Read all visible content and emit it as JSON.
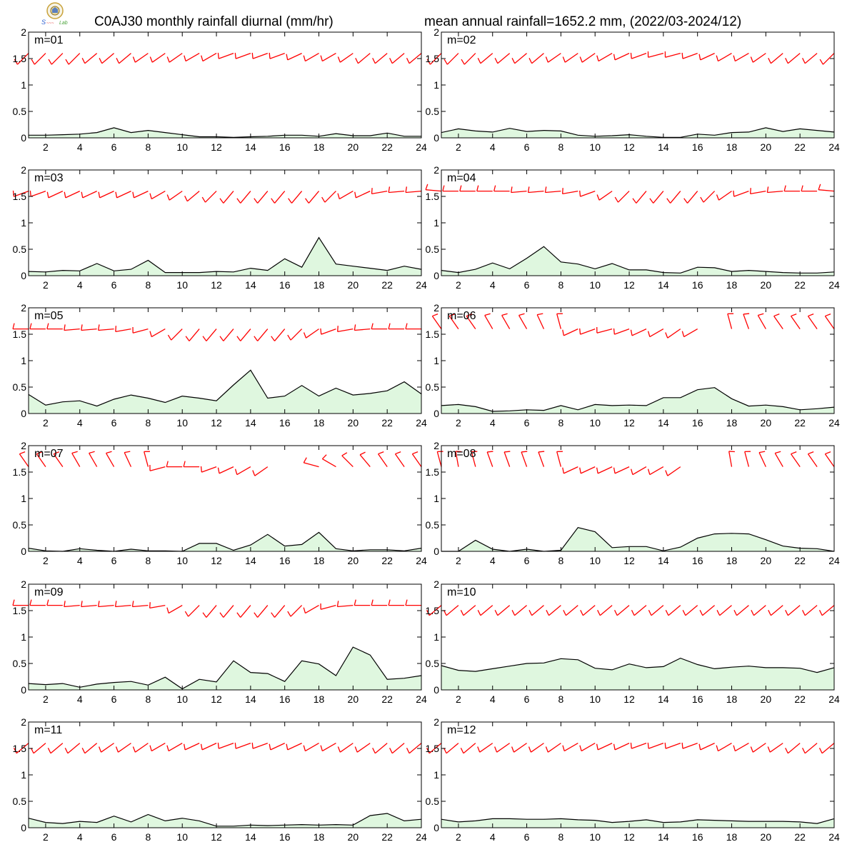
{
  "header": {
    "title_left": "C0AJ30 monthly rainfall diurnal (mm/hr)",
    "title_right": "mean annual rainfall=1652.2 mm, (2022/03-2024/12)"
  },
  "style": {
    "rain_line": "#000000",
    "rain_fill": "#dff7df",
    "wind_color": "#ff0000",
    "axis_color": "#000000"
  },
  "chart_data": [
    {
      "type": "area",
      "label": "m=01",
      "xlim": [
        1,
        24
      ],
      "ylim": [
        0,
        2
      ],
      "xticks": [
        2,
        4,
        6,
        8,
        10,
        12,
        14,
        16,
        18,
        20,
        22,
        24
      ],
      "yticks": [
        0,
        0.5,
        1,
        1.5,
        2
      ],
      "x": [
        1,
        2,
        3,
        4,
        5,
        6,
        7,
        8,
        9,
        10,
        11,
        12,
        13,
        14,
        15,
        16,
        17,
        18,
        19,
        20,
        21,
        22,
        23,
        24
      ],
      "rain": [
        0.05,
        0.05,
        0.06,
        0.07,
        0.1,
        0.19,
        0.1,
        0.14,
        0.1,
        0.06,
        0.02,
        0.02,
        0.01,
        0.02,
        0.03,
        0.05,
        0.05,
        0.03,
        0.08,
        0.04,
        0.04,
        0.09,
        0.03,
        0.03
      ],
      "wind_dir": [
        225,
        225,
        225,
        225,
        230,
        230,
        230,
        235,
        235,
        235,
        240,
        240,
        250,
        250,
        250,
        250,
        245,
        240,
        240,
        235,
        230,
        230,
        230,
        230
      ]
    },
    {
      "type": "area",
      "label": "m=02",
      "xlim": [
        1,
        24
      ],
      "ylim": [
        0,
        2
      ],
      "xticks": [
        2,
        4,
        6,
        8,
        10,
        12,
        14,
        16,
        18,
        20,
        22,
        24
      ],
      "yticks": [
        0,
        0.5,
        1,
        1.5,
        2
      ],
      "x": [
        1,
        2,
        3,
        4,
        5,
        6,
        7,
        8,
        9,
        10,
        11,
        12,
        13,
        14,
        15,
        16,
        17,
        18,
        19,
        20,
        21,
        22,
        23,
        24
      ],
      "rain": [
        0.1,
        0.17,
        0.13,
        0.11,
        0.18,
        0.12,
        0.14,
        0.13,
        0.05,
        0.03,
        0.04,
        0.06,
        0.03,
        0.01,
        0.01,
        0.07,
        0.05,
        0.1,
        0.11,
        0.19,
        0.12,
        0.17,
        0.14,
        0.11
      ],
      "wind_dir": [
        225,
        225,
        225,
        230,
        230,
        230,
        230,
        235,
        235,
        235,
        240,
        245,
        250,
        255,
        255,
        250,
        245,
        240,
        240,
        235,
        230,
        230,
        230,
        225
      ]
    },
    {
      "type": "area",
      "label": "m=03",
      "xlim": [
        1,
        24
      ],
      "ylim": [
        0,
        2
      ],
      "xticks": [
        2,
        4,
        6,
        8,
        10,
        12,
        14,
        16,
        18,
        20,
        22,
        24
      ],
      "yticks": [
        0,
        0.5,
        1,
        1.5,
        2
      ],
      "x": [
        1,
        2,
        3,
        4,
        5,
        6,
        7,
        8,
        9,
        10,
        11,
        12,
        13,
        14,
        15,
        16,
        17,
        18,
        19,
        20,
        21,
        22,
        23,
        24
      ],
      "rain": [
        0.08,
        0.07,
        0.1,
        0.09,
        0.23,
        0.09,
        0.12,
        0.29,
        0.06,
        0.06,
        0.06,
        0.08,
        0.07,
        0.14,
        0.1,
        0.32,
        0.16,
        0.72,
        0.22,
        0.18,
        0.14,
        0.1,
        0.18,
        0.12
      ],
      "wind_dir": [
        250,
        250,
        245,
        245,
        245,
        245,
        245,
        245,
        240,
        235,
        230,
        225,
        220,
        220,
        220,
        220,
        220,
        220,
        225,
        240,
        245,
        260,
        265,
        265
      ]
    },
    {
      "type": "area",
      "label": "m=04",
      "xlim": [
        1,
        24
      ],
      "ylim": [
        0,
        2
      ],
      "xticks": [
        2,
        4,
        6,
        8,
        10,
        12,
        14,
        16,
        18,
        20,
        22,
        24
      ],
      "yticks": [
        0,
        0.5,
        1,
        1.5,
        2
      ],
      "x": [
        1,
        2,
        3,
        4,
        5,
        6,
        7,
        8,
        9,
        10,
        11,
        12,
        13,
        14,
        15,
        16,
        17,
        18,
        19,
        20,
        21,
        22,
        23,
        24
      ],
      "rain": [
        0.1,
        0.06,
        0.12,
        0.24,
        0.13,
        0.33,
        0.55,
        0.26,
        0.22,
        0.13,
        0.23,
        0.11,
        0.11,
        0.06,
        0.05,
        0.16,
        0.15,
        0.08,
        0.1,
        0.08,
        0.06,
        0.05,
        0.05,
        0.07
      ],
      "wind_dir": [
        275,
        270,
        270,
        270,
        270,
        265,
        265,
        265,
        260,
        250,
        235,
        225,
        220,
        220,
        220,
        220,
        225,
        235,
        250,
        260,
        265,
        270,
        270,
        275
      ]
    },
    {
      "type": "area",
      "label": "m=05",
      "xlim": [
        1,
        24
      ],
      "ylim": [
        0,
        2
      ],
      "xticks": [
        2,
        4,
        6,
        8,
        10,
        12,
        14,
        16,
        18,
        20,
        22,
        24
      ],
      "yticks": [
        0,
        0.5,
        1,
        1.5,
        2
      ],
      "x": [
        1,
        2,
        3,
        4,
        5,
        6,
        7,
        8,
        9,
        10,
        11,
        12,
        13,
        14,
        15,
        16,
        17,
        18,
        19,
        20,
        21,
        22,
        23,
        24
      ],
      "rain": [
        0.36,
        0.16,
        0.22,
        0.24,
        0.14,
        0.27,
        0.35,
        0.29,
        0.21,
        0.33,
        0.29,
        0.24,
        0.54,
        0.82,
        0.29,
        0.33,
        0.53,
        0.33,
        0.48,
        0.35,
        0.38,
        0.43,
        0.6,
        0.37
      ],
      "wind_dir": [
        270,
        270,
        270,
        265,
        265,
        265,
        260,
        255,
        240,
        225,
        220,
        220,
        220,
        220,
        220,
        220,
        225,
        235,
        250,
        260,
        265,
        270,
        270,
        270
      ]
    },
    {
      "type": "area",
      "label": "m=06",
      "xlim": [
        1,
        24
      ],
      "ylim": [
        0,
        2
      ],
      "xticks": [
        2,
        4,
        6,
        8,
        10,
        12,
        14,
        16,
        18,
        20,
        22,
        24
      ],
      "yticks": [
        0,
        0.5,
        1,
        1.5,
        2
      ],
      "x": [
        1,
        2,
        3,
        4,
        5,
        6,
        7,
        8,
        9,
        10,
        11,
        12,
        13,
        14,
        15,
        16,
        17,
        18,
        19,
        20,
        21,
        22,
        23,
        24
      ],
      "rain": [
        0.15,
        0.17,
        0.13,
        0.04,
        0.05,
        0.07,
        0.06,
        0.15,
        0.07,
        0.17,
        0.15,
        0.16,
        0.15,
        0.3,
        0.3,
        0.45,
        0.49,
        0.28,
        0.14,
        0.16,
        0.13,
        0.07,
        0.09,
        0.12
      ],
      "wind_dir": [
        325,
        325,
        325,
        330,
        330,
        330,
        335,
        345,
        245,
        250,
        255,
        250,
        245,
        240,
        235,
        240,
        null,
        345,
        340,
        330,
        325,
        325,
        325,
        325
      ]
    },
    {
      "type": "area",
      "label": "m=07",
      "xlim": [
        1,
        24
      ],
      "ylim": [
        0,
        2
      ],
      "xticks": [
        2,
        4,
        6,
        8,
        10,
        12,
        14,
        16,
        18,
        20,
        22,
        24
      ],
      "yticks": [
        0,
        0.5,
        1,
        1.5,
        2
      ],
      "x": [
        1,
        2,
        3,
        4,
        5,
        6,
        7,
        8,
        9,
        10,
        11,
        12,
        13,
        14,
        15,
        16,
        17,
        18,
        19,
        20,
        21,
        22,
        23,
        24
      ],
      "rain": [
        0.06,
        0.01,
        0.0,
        0.05,
        0.02,
        0.0,
        0.04,
        0.01,
        0.01,
        0.0,
        0.15,
        0.15,
        0.02,
        0.12,
        0.32,
        0.1,
        0.13,
        0.36,
        0.05,
        0.01,
        0.03,
        0.03,
        0.01,
        0.06
      ],
      "wind_dir": [
        325,
        325,
        325,
        330,
        330,
        330,
        335,
        345,
        255,
        270,
        270,
        250,
        245,
        240,
        235,
        null,
        null,
        285,
        300,
        315,
        320,
        325,
        325,
        325
      ]
    },
    {
      "type": "area",
      "label": "m=08",
      "xlim": [
        1,
        24
      ],
      "ylim": [
        0,
        2
      ],
      "xticks": [
        2,
        4,
        6,
        8,
        10,
        12,
        14,
        16,
        18,
        20,
        22,
        24
      ],
      "yticks": [
        0,
        0.5,
        1,
        1.5,
        2
      ],
      "x": [
        1,
        2,
        3,
        4,
        5,
        6,
        7,
        8,
        9,
        10,
        11,
        12,
        13,
        14,
        15,
        16,
        17,
        18,
        19,
        20,
        21,
        22,
        23,
        24
      ],
      "rain": [
        0.0,
        0.0,
        0.21,
        0.04,
        0.0,
        0.04,
        0.0,
        0.02,
        0.45,
        0.37,
        0.07,
        0.09,
        0.09,
        0.01,
        0.08,
        0.25,
        0.33,
        0.34,
        0.33,
        0.22,
        0.1,
        0.06,
        0.05,
        0.0
      ],
      "wind_dir": [
        345,
        350,
        345,
        340,
        340,
        340,
        340,
        345,
        245,
        245,
        245,
        245,
        240,
        240,
        235,
        null,
        null,
        350,
        345,
        335,
        330,
        325,
        325,
        325
      ]
    },
    {
      "type": "area",
      "label": "m=09",
      "xlim": [
        1,
        24
      ],
      "ylim": [
        0,
        2
      ],
      "xticks": [
        2,
        4,
        6,
        8,
        10,
        12,
        14,
        16,
        18,
        20,
        22,
        24
      ],
      "yticks": [
        0,
        0.5,
        1,
        1.5,
        2
      ],
      "x": [
        1,
        2,
        3,
        4,
        5,
        6,
        7,
        8,
        9,
        10,
        11,
        12,
        13,
        14,
        15,
        16,
        17,
        18,
        19,
        20,
        21,
        22,
        23,
        24
      ],
      "rain": [
        0.12,
        0.1,
        0.12,
        0.05,
        0.11,
        0.14,
        0.16,
        0.09,
        0.24,
        0.02,
        0.2,
        0.15,
        0.55,
        0.33,
        0.31,
        0.16,
        0.55,
        0.49,
        0.27,
        0.81,
        0.66,
        0.2,
        0.22,
        0.27
      ],
      "wind_dir": [
        270,
        270,
        270,
        265,
        265,
        265,
        265,
        265,
        260,
        240,
        225,
        220,
        220,
        220,
        220,
        220,
        225,
        240,
        255,
        265,
        270,
        270,
        270,
        270
      ]
    },
    {
      "type": "area",
      "label": "m=10",
      "xlim": [
        1,
        24
      ],
      "ylim": [
        0,
        2
      ],
      "xticks": [
        2,
        4,
        6,
        8,
        10,
        12,
        14,
        16,
        18,
        20,
        22,
        24
      ],
      "yticks": [
        0,
        0.5,
        1,
        1.5,
        2
      ],
      "x": [
        1,
        2,
        3,
        4,
        5,
        6,
        7,
        8,
        9,
        10,
        11,
        12,
        13,
        14,
        15,
        16,
        17,
        18,
        19,
        20,
        21,
        22,
        23,
        24
      ],
      "rain": [
        0.46,
        0.37,
        0.35,
        0.4,
        0.45,
        0.5,
        0.51,
        0.59,
        0.57,
        0.41,
        0.38,
        0.49,
        0.42,
        0.44,
        0.6,
        0.48,
        0.4,
        0.43,
        0.45,
        0.42,
        0.42,
        0.41,
        0.33,
        0.42
      ],
      "wind_dir": [
        230,
        230,
        230,
        230,
        230,
        230,
        230,
        230,
        230,
        230,
        230,
        230,
        230,
        230,
        230,
        230,
        230,
        230,
        230,
        230,
        230,
        230,
        230,
        230
      ]
    },
    {
      "type": "area",
      "label": "m=11",
      "xlim": [
        1,
        24
      ],
      "ylim": [
        0,
        2
      ],
      "xticks": [
        2,
        4,
        6,
        8,
        10,
        12,
        14,
        16,
        18,
        20,
        22,
        24
      ],
      "yticks": [
        0,
        0.5,
        1,
        1.5,
        2
      ],
      "x": [
        1,
        2,
        3,
        4,
        5,
        6,
        7,
        8,
        9,
        10,
        11,
        12,
        13,
        14,
        15,
        16,
        17,
        18,
        19,
        20,
        21,
        22,
        23,
        24
      ],
      "rain": [
        0.18,
        0.1,
        0.08,
        0.12,
        0.1,
        0.22,
        0.11,
        0.25,
        0.13,
        0.18,
        0.13,
        0.03,
        0.03,
        0.05,
        0.04,
        0.05,
        0.06,
        0.05,
        0.06,
        0.05,
        0.23,
        0.27,
        0.13,
        0.16
      ],
      "wind_dir": [
        230,
        230,
        230,
        230,
        230,
        235,
        235,
        235,
        240,
        240,
        245,
        245,
        250,
        250,
        250,
        245,
        245,
        240,
        240,
        235,
        235,
        230,
        230,
        230
      ]
    },
    {
      "type": "area",
      "label": "m=12",
      "xlim": [
        1,
        24
      ],
      "ylim": [
        0,
        2
      ],
      "xticks": [
        2,
        4,
        6,
        8,
        10,
        12,
        14,
        16,
        18,
        20,
        22,
        24
      ],
      "yticks": [
        0,
        0.5,
        1,
        1.5,
        2
      ],
      "x": [
        1,
        2,
        3,
        4,
        5,
        6,
        7,
        8,
        9,
        10,
        11,
        12,
        13,
        14,
        15,
        16,
        17,
        18,
        19,
        20,
        21,
        22,
        23,
        24
      ],
      "rain": [
        0.16,
        0.11,
        0.13,
        0.17,
        0.17,
        0.16,
        0.16,
        0.17,
        0.15,
        0.14,
        0.1,
        0.12,
        0.15,
        0.1,
        0.11,
        0.15,
        0.14,
        0.13,
        0.12,
        0.12,
        0.12,
        0.11,
        0.08,
        0.17
      ],
      "wind_dir": [
        230,
        230,
        230,
        235,
        235,
        235,
        235,
        235,
        240,
        240,
        245,
        245,
        250,
        250,
        250,
        250,
        245,
        240,
        240,
        235,
        235,
        230,
        230,
        230
      ]
    }
  ]
}
